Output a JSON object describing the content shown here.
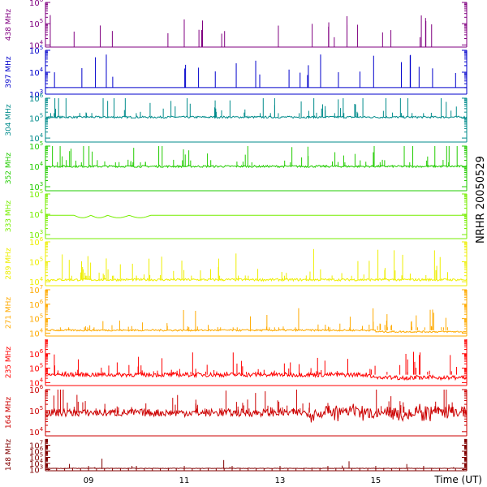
{
  "chart_data": {
    "type": "line",
    "title": "NRHR 20050529",
    "xlabel": "Time (UT)",
    "x_ticks": [
      "09",
      "11",
      "13",
      "15"
    ],
    "x_range_hours": [
      8.1,
      16.9
    ],
    "panels": [
      {
        "name": "438 MHz",
        "color": "#800080",
        "ylog_range": [
          3.9,
          6
        ],
        "tick_labels": [
          {
            "exp": "4",
            "at": 4
          },
          {
            "exp": "5",
            "at": 5
          },
          {
            "exp": "6",
            "at": 6
          }
        ],
        "baseline": 3.9,
        "noise": 0,
        "bursts": "sparse"
      },
      {
        "name": "397 MHz",
        "color": "#0000cc",
        "ylog_range": [
          3,
          5
        ],
        "tick_labels": [
          {
            "exp": "3",
            "at": 3
          },
          {
            "exp": "4",
            "at": 4
          },
          {
            "exp": "5",
            "at": 5
          }
        ],
        "baseline": 3.3,
        "noise": 0,
        "bursts": "sparse"
      },
      {
        "name": "304 MHz",
        "color": "#008b8b",
        "ylog_range": [
          3.8,
          6
        ],
        "tick_labels": [
          {
            "exp": "4",
            "at": 4
          },
          {
            "exp": "5",
            "at": 5
          },
          {
            "exp": "6",
            "at": 6
          }
        ],
        "baseline": 5.05,
        "noise": 0.05,
        "bursts": "dense"
      },
      {
        "name": "352 MHz",
        "color": "#22cc00",
        "ylog_range": [
          2.8,
          5
        ],
        "tick_labels": [
          {
            "exp": "3",
            "at": 3
          },
          {
            "exp": "4",
            "at": 4
          },
          {
            "exp": "5",
            "at": 5
          }
        ],
        "baseline": 4.0,
        "noise": 0.05,
        "bursts": "dense"
      },
      {
        "name": "333 MHz",
        "color": "#77ee00",
        "ylog_range": [
          2.8,
          5
        ],
        "tick_labels": [
          {
            "exp": "3",
            "at": 3
          },
          {
            "exp": "4",
            "at": 4
          },
          {
            "exp": "5",
            "at": 5
          }
        ],
        "baseline": 3.95,
        "noise": 0,
        "bursts": "none"
      },
      {
        "name": "289 MHz",
        "color": "#eeee00",
        "ylog_range": [
          3.8,
          6
        ],
        "tick_labels": [
          {
            "exp": "4",
            "at": 4
          },
          {
            "exp": "5",
            "at": 5
          },
          {
            "exp": "6",
            "at": 6
          }
        ],
        "baseline": 4.1,
        "noise": 0.06,
        "bursts": "dense"
      },
      {
        "name": "271 MHz",
        "color": "#ffaa00",
        "ylog_range": [
          3.8,
          7
        ],
        "tick_labels": [
          {
            "exp": "4",
            "at": 4
          },
          {
            "exp": "5",
            "at": 5
          },
          {
            "exp": "6",
            "at": 6
          },
          {
            "exp": "7",
            "at": 7
          }
        ],
        "baseline": 4.2,
        "noise": 0.06,
        "bursts": "dense"
      },
      {
        "name": "235 MHz",
        "color": "#ff0000",
        "ylog_range": [
          3.8,
          7
        ],
        "tick_labels": [
          {
            "exp": "4",
            "at": 4
          },
          {
            "exp": "5",
            "at": 5
          },
          {
            "exp": "6",
            "at": 6
          }
        ],
        "baseline": 4.55,
        "noise": 0.15,
        "bursts": "dense"
      },
      {
        "name": "164 MHz",
        "color": "#cc0000",
        "ylog_range": [
          3.8,
          6
        ],
        "tick_labels": [
          {
            "exp": "4",
            "at": 4
          },
          {
            "exp": "5",
            "at": 5
          },
          {
            "exp": "6",
            "at": 6
          }
        ],
        "baseline": 4.9,
        "noise": 0.18,
        "bursts": "dense"
      },
      {
        "name": "148 MHz",
        "color": "#800000",
        "ylog_range": [
          2.8,
          8
        ],
        "tick_labels": [
          {
            "exp": "3",
            "at": 3
          },
          {
            "exp": "4",
            "at": 4
          },
          {
            "exp": "5",
            "at": 5
          },
          {
            "exp": "6",
            "at": 6
          },
          {
            "exp": "7",
            "at": 7
          }
        ],
        "baseline": 3.2,
        "noise": 0.03,
        "bursts": "rare"
      }
    ]
  }
}
